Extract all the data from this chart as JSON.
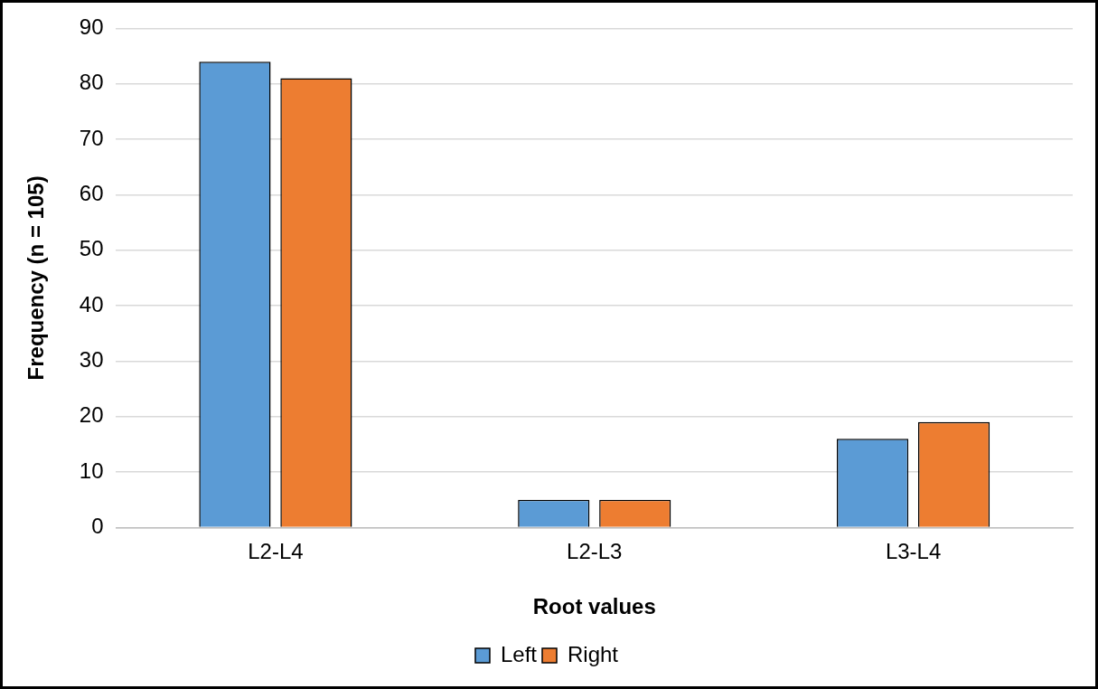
{
  "chart_data": {
    "type": "bar",
    "xlabel": "Root values",
    "ylabel": "Frequency (n = 105)",
    "categories": [
      "L2-L4",
      "L2-L3",
      "L3-L4"
    ],
    "series": [
      {
        "name": "Left",
        "color": "#5b9bd5",
        "values": [
          84,
          5,
          16
        ]
      },
      {
        "name": "Right",
        "color": "#ed7d31",
        "values": [
          81,
          5,
          19
        ]
      }
    ],
    "ylim": [
      0,
      90
    ],
    "yticks": [
      0,
      10,
      20,
      30,
      40,
      50,
      60,
      70,
      80,
      90
    ],
    "grid": "y",
    "legend": "bottom"
  }
}
